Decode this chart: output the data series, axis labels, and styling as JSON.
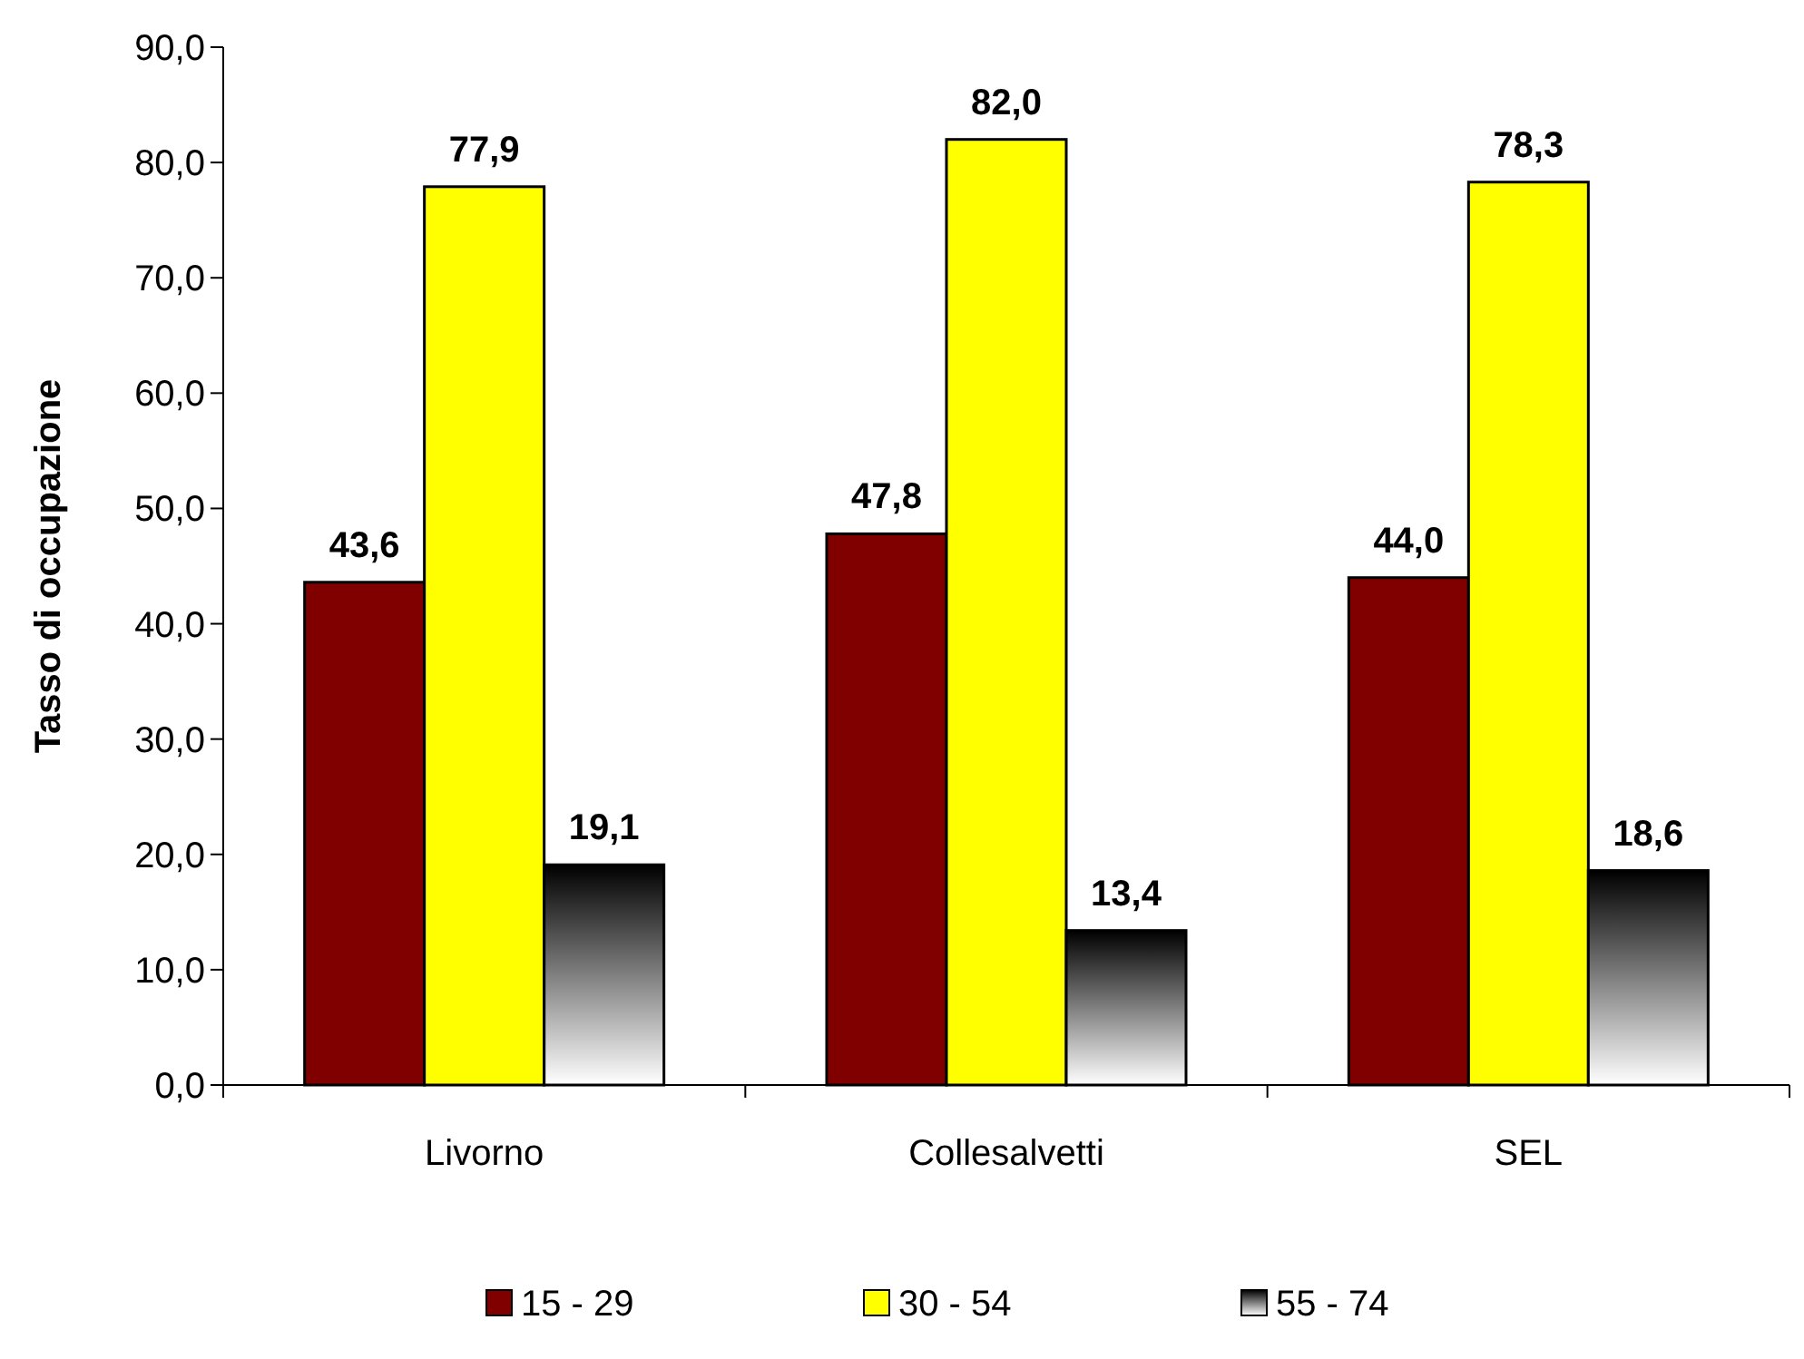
{
  "chart_data": {
    "type": "bar",
    "ylabel": "Tasso di occupazione",
    "categories": [
      "Livorno",
      "Collesalvetti",
      "SEL"
    ],
    "series": [
      {
        "name": "15 - 29",
        "color": "#800000",
        "values": [
          43.6,
          47.8,
          44.0
        ],
        "value_labels": [
          "43,6",
          "47,8",
          "44,0"
        ]
      },
      {
        "name": "30 - 54",
        "color": "#ffff00",
        "values": [
          77.9,
          82.0,
          78.3
        ],
        "value_labels": [
          "77,9",
          "82,0",
          "78,3"
        ]
      },
      {
        "name": "55 - 74",
        "color": "#000000",
        "values": [
          19.1,
          13.4,
          18.6
        ],
        "value_labels": [
          "19,1",
          "13,4",
          "18,6"
        ]
      }
    ],
    "ylim": [
      0,
      90
    ],
    "yticks": [
      {
        "value": 0,
        "label": "0,0"
      },
      {
        "value": 10,
        "label": "10,0"
      },
      {
        "value": 20,
        "label": "20,0"
      },
      {
        "value": 30,
        "label": "30,0"
      },
      {
        "value": 40,
        "label": "40,0"
      },
      {
        "value": 50,
        "label": "50,0"
      },
      {
        "value": 60,
        "label": "60,0"
      },
      {
        "value": 70,
        "label": "70,0"
      },
      {
        "value": 80,
        "label": "80,0"
      },
      {
        "value": 90,
        "label": "90,0"
      }
    ],
    "grid": false,
    "legend": "bottom"
  }
}
